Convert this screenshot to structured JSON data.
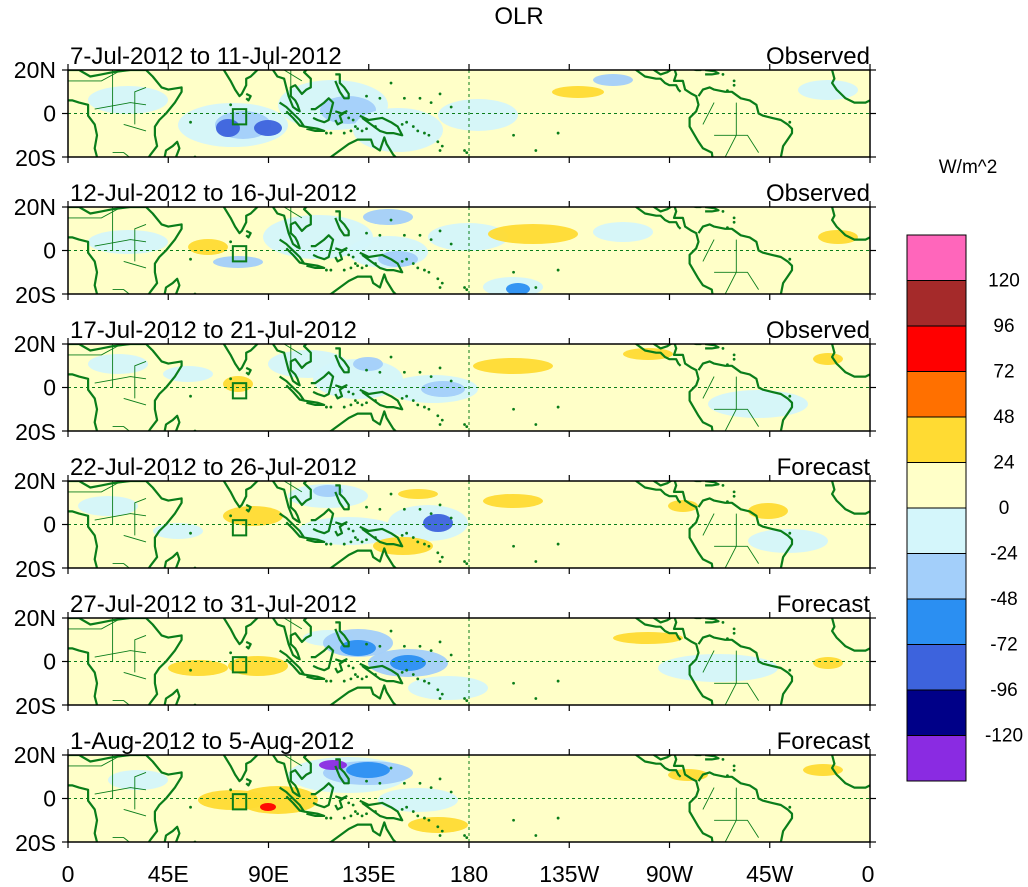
{
  "title": "OLR",
  "units_label": "W/m^2",
  "panels": [
    {
      "period": "7-Jul-2012 to 11-Jul-2012",
      "status": "Observed"
    },
    {
      "period": "12-Jul-2012 to 16-Jul-2012",
      "status": "Observed"
    },
    {
      "period": "17-Jul-2012 to 21-Jul-2012",
      "status": "Observed"
    },
    {
      "period": "22-Jul-2012 to 26-Jul-2012",
      "status": "Forecast"
    },
    {
      "period": "27-Jul-2012 to 31-Jul-2012",
      "status": "Forecast"
    },
    {
      "period": "1-Aug-2012 to 5-Aug-2012",
      "status": "Forecast"
    }
  ],
  "lat_labels": [
    "20N",
    "0",
    "20S"
  ],
  "lon_labels": [
    "0",
    "45E",
    "90E",
    "135E",
    "180",
    "135W",
    "90W",
    "45W",
    "0"
  ],
  "colorbar": {
    "colors": [
      "#ff66bb",
      "#a52a2a",
      "#ff0000",
      "#ff7000",
      "#ffdb33",
      "#ffffc8",
      "#d4f6fb",
      "#a3cffa",
      "#2b8ff2",
      "#3d63dd",
      "#000088",
      "#8a2be2"
    ],
    "labels": [
      "120",
      "96",
      "72",
      "48",
      "24",
      "0",
      "-24",
      "-48",
      "-72",
      "-96",
      "-120"
    ]
  },
  "palette": {
    "land_outline": "#0a7d1a",
    "dashed_line": "#0a7d1a",
    "box_outline": "#0a7d1a"
  }
}
